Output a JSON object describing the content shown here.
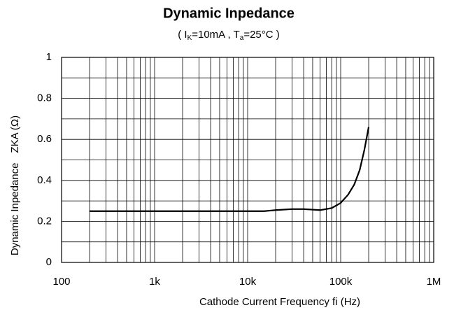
{
  "chart_data": {
    "type": "line",
    "title": "Dynamic Inpedance",
    "subtitle": [
      "( I",
      "K",
      "=10mA , T",
      "a",
      "=25°C )"
    ],
    "ylabel": "Dynamic Inpedance",
    "ylabel_symbol": "ZKA (Ω)",
    "xlabel": "Cathode Current Frequency   fi (Hz)",
    "x": [
      200,
      1000,
      10000,
      15000,
      20000,
      30000,
      40000,
      60000,
      80000,
      100000,
      120000,
      140000,
      160000,
      180000,
      200000
    ],
    "series": [
      {
        "name": "Dynamic Inpedance",
        "color": "#000000",
        "values": [
          0.25,
          0.25,
          0.25,
          0.25,
          0.255,
          0.26,
          0.26,
          0.255,
          0.265,
          0.29,
          0.33,
          0.38,
          0.45,
          0.55,
          0.66
        ]
      }
    ],
    "xlim": [
      100,
      1000000
    ],
    "xticks": [
      100,
      {
        "value": 1000,
        "label": "1k"
      },
      {
        "value": 10000,
        "label": "10k"
      },
      {
        "value": 100000,
        "label": "100k"
      },
      {
        "value": 1000000,
        "label": "1M"
      }
    ],
    "xscale": "log",
    "ylim": [
      0,
      1
    ],
    "yticks": [
      0,
      0.2,
      0.4,
      0.6,
      0.8,
      1
    ],
    "grid": true
  }
}
